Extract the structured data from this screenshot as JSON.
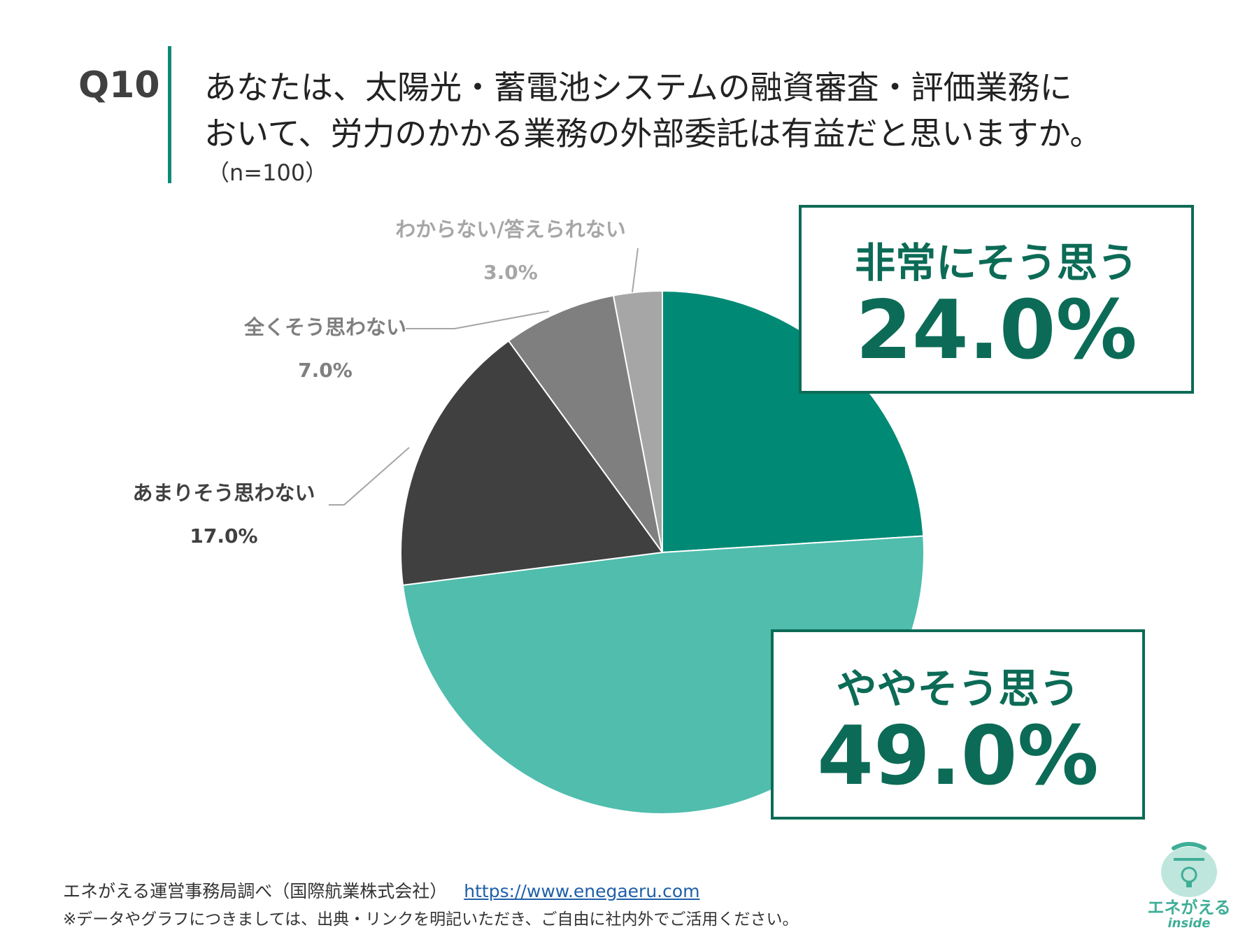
{
  "header": {
    "q_label": "Q10",
    "question_line1": "あなたは、太陽光・蓄電池システムの融資審査・評価業務に",
    "question_line2": "おいて、労力のかかる業務の外部委託は有益だと思いますか。",
    "n_label": "（n=100）"
  },
  "chart_data": {
    "type": "pie",
    "categories": [
      "非常にそう思う",
      "ややそう思う",
      "あまりそう思わない",
      "全くそう思わない",
      "わからない/答えられない"
    ],
    "values": [
      24.0,
      49.0,
      17.0,
      7.0,
      3.0
    ],
    "value_labels": [
      "24.0%",
      "49.0%",
      "17.0%",
      "7.0%",
      "3.0%"
    ],
    "colors": [
      "#008a75",
      "#50bdad",
      "#404040",
      "#7f7f7f",
      "#a6a6a6"
    ],
    "start": "12 o'clock, clockwise"
  },
  "footer": {
    "source": "エネがえる運営事務局調べ（国際航業株式会社）",
    "url": "https://www.enegaeru.com",
    "note": "※データやグラフにつきましては、出典・リンクを明記いただき、ご自由に社内外でご活用ください。"
  },
  "logo": {
    "name": "エネがえる",
    "sub": "inside"
  }
}
